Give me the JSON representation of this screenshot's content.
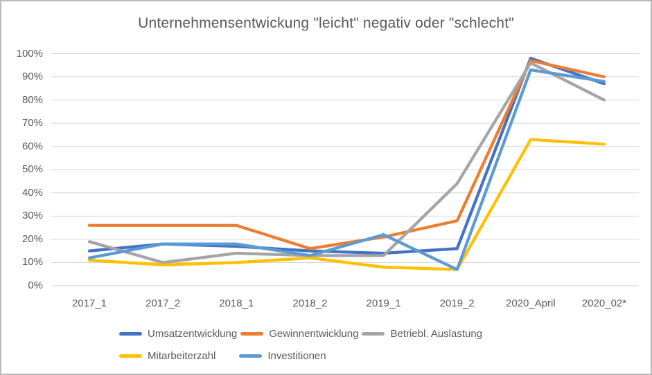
{
  "chart_data": {
    "type": "line",
    "title": "Unternehmensentwickung \"leicht\" negativ oder \"schlecht\"",
    "categories": [
      "2017_1",
      "2017_2",
      "2018_1",
      "2018_2",
      "2019_1",
      "2019_2",
      "2020_April",
      "2020_02*"
    ],
    "series": [
      {
        "name": "Umsatzentwicklung",
        "color": "#4472C4",
        "values": [
          15,
          18,
          17,
          15,
          14,
          16,
          98,
          87
        ]
      },
      {
        "name": "Gewinnentwicklung",
        "color": "#ED7D31",
        "values": [
          26,
          26,
          26,
          16,
          21,
          28,
          97,
          90
        ]
      },
      {
        "name": "Betriebl. Auslastung",
        "color": "#A5A5A5",
        "values": [
          19,
          10,
          14,
          13,
          13,
          44,
          96,
          80
        ]
      },
      {
        "name": "Mitarbeiterzahl",
        "color": "#FFC000",
        "values": [
          11,
          9,
          10,
          12,
          8,
          7,
          63,
          61
        ]
      },
      {
        "name": "Investitionen",
        "color": "#5B9BD5",
        "values": [
          12,
          18,
          18,
          13,
          22,
          7,
          93,
          88
        ]
      }
    ],
    "y_axis": {
      "min": 0,
      "max": 100,
      "step": 10,
      "tick_labels": [
        "0%",
        "10%",
        "20%",
        "30%",
        "40%",
        "50%",
        "60%",
        "70%",
        "80%",
        "90%",
        "100%"
      ]
    },
    "xlabel": "",
    "ylabel": "",
    "grid": true,
    "legend_position": "bottom"
  },
  "styles": {
    "title_color": "#595959",
    "axis_label_color": "#595959",
    "gridline_color": "#D6D6D6",
    "background": "#FFFFFF",
    "border_color": "#B9B9B9"
  }
}
